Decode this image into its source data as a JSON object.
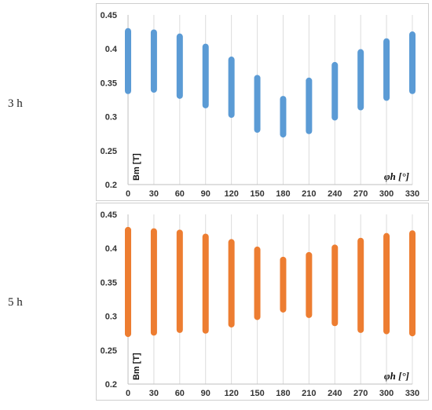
{
  "row_labels": [
    "3 h",
    "5 h"
  ],
  "chart_data": [
    {
      "type": "scatter",
      "ylabel": "Bm [T]",
      "xlabel": "φh [°]",
      "color": "#5b9bd5",
      "ylim": [
        0.2,
        0.45
      ],
      "yticks": [
        "0.2",
        "0.25",
        "0.3",
        "0.35",
        "0.4",
        "0.45"
      ],
      "categories": [
        "0",
        "30",
        "60",
        "90",
        "120",
        "150",
        "180",
        "210",
        "240",
        "270",
        "300",
        "330"
      ],
      "grid": true,
      "ranges": [
        {
          "x": 0,
          "min": 0.338,
          "max": 0.426
        },
        {
          "x": 30,
          "min": 0.34,
          "max": 0.424
        },
        {
          "x": 60,
          "min": 0.331,
          "max": 0.418
        },
        {
          "x": 90,
          "min": 0.317,
          "max": 0.403
        },
        {
          "x": 120,
          "min": 0.303,
          "max": 0.384
        },
        {
          "x": 150,
          "min": 0.281,
          "max": 0.357
        },
        {
          "x": 180,
          "min": 0.274,
          "max": 0.326
        },
        {
          "x": 210,
          "min": 0.279,
          "max": 0.353
        },
        {
          "x": 240,
          "min": 0.299,
          "max": 0.376
        },
        {
          "x": 270,
          "min": 0.314,
          "max": 0.395
        },
        {
          "x": 300,
          "min": 0.328,
          "max": 0.411
        },
        {
          "x": 330,
          "min": 0.338,
          "max": 0.421
        }
      ]
    },
    {
      "type": "scatter",
      "ylabel": "Bm [T]",
      "xlabel": "φh [°]",
      "color": "#ed7d31",
      "ylim": [
        0.2,
        0.45
      ],
      "yticks": [
        "0.2",
        "0.25",
        "0.3",
        "0.35",
        "0.4",
        "0.45"
      ],
      "categories": [
        "0",
        "30",
        "60",
        "90",
        "120",
        "150",
        "180",
        "210",
        "240",
        "270",
        "300",
        "330"
      ],
      "grid": true,
      "ranges": [
        {
          "x": 0,
          "min": 0.274,
          "max": 0.427
        },
        {
          "x": 30,
          "min": 0.276,
          "max": 0.425
        },
        {
          "x": 60,
          "min": 0.28,
          "max": 0.423
        },
        {
          "x": 90,
          "min": 0.279,
          "max": 0.417
        },
        {
          "x": 120,
          "min": 0.288,
          "max": 0.409
        },
        {
          "x": 150,
          "min": 0.299,
          "max": 0.398
        },
        {
          "x": 180,
          "min": 0.31,
          "max": 0.383
        },
        {
          "x": 210,
          "min": 0.302,
          "max": 0.39
        },
        {
          "x": 240,
          "min": 0.29,
          "max": 0.401
        },
        {
          "x": 270,
          "min": 0.28,
          "max": 0.411
        },
        {
          "x": 300,
          "min": 0.278,
          "max": 0.418
        },
        {
          "x": 330,
          "min": 0.275,
          "max": 0.422
        }
      ]
    }
  ]
}
